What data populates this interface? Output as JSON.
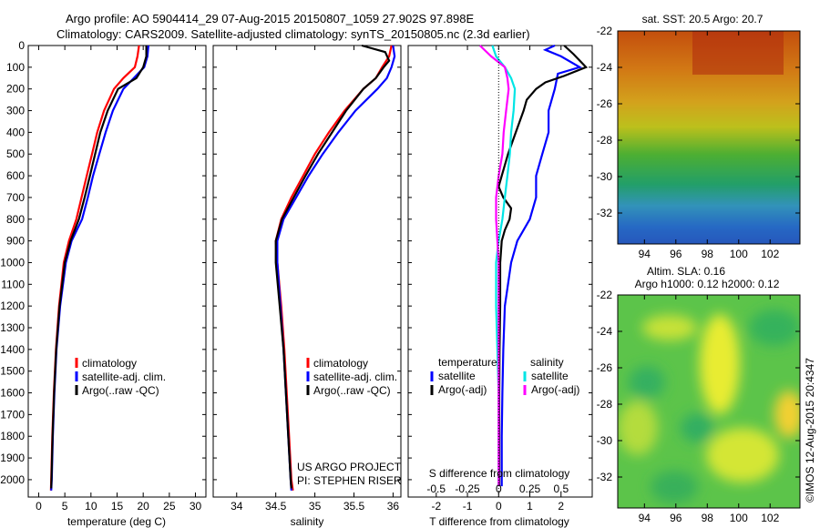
{
  "header": {
    "line1": "Argo profile: AO 5904414_29 07-Aug-2015 20150807_1059 27.902S 97.898E",
    "line2": "Climatology: CARS2009. Satellite-adjusted climatology: synTS_20150805.nc (2.3d earlier)"
  },
  "colors": {
    "climatology": "#ff0000",
    "satellite": "#0000ff",
    "argo": "#000000",
    "sal_satellite": "#00e5e5",
    "sal_argo": "#ff00ff"
  },
  "chart_data": [
    {
      "type": "line",
      "panel": "temperature",
      "xlabel": "temperature (deg C)",
      "xlim": [
        -2,
        32
      ],
      "ylim": [
        2080,
        0
      ],
      "xticks": [
        "0",
        "5",
        "10",
        "15",
        "20",
        "25",
        "30"
      ],
      "yticks": [
        "0",
        "100",
        "200",
        "300",
        "400",
        "500",
        "600",
        "700",
        "800",
        "900",
        "1000",
        "1100",
        "1200",
        "1300",
        "1400",
        "1500",
        "1600",
        "1700",
        "1800",
        "1900",
        "2000"
      ],
      "legend": [
        "climatology",
        "satellite-adj. clim.",
        "Argo(..raw -QC)"
      ],
      "series": [
        {
          "name": "climatology",
          "depth": [
            0,
            50,
            100,
            150,
            200,
            300,
            400,
            500,
            600,
            700,
            800,
            900,
            1000,
            1200,
            1400,
            1600,
            1800,
            2000,
            2050
          ],
          "values": [
            19.2,
            18.9,
            18.4,
            16.2,
            14.4,
            12.5,
            11.2,
            10.2,
            9.2,
            8.2,
            7.2,
            5.8,
            4.8,
            3.9,
            3.3,
            2.9,
            2.6,
            2.4,
            2.35
          ]
        },
        {
          "name": "satellite-adj. clim.",
          "depth": [
            0,
            50,
            100,
            150,
            200,
            300,
            400,
            500,
            600,
            700,
            800,
            900,
            1000,
            1200,
            1400,
            1600,
            1800,
            2000,
            2050
          ],
          "values": [
            21.0,
            20.8,
            20.2,
            18.2,
            16.2,
            14.2,
            12.8,
            11.6,
            10.4,
            9.4,
            8.3,
            6.3,
            5.2,
            4.1,
            3.4,
            3.0,
            2.7,
            2.5,
            2.4
          ]
        },
        {
          "name": "Argo(..raw -QC)",
          "depth": [
            0,
            50,
            100,
            150,
            200,
            300,
            400,
            500,
            600,
            700,
            800,
            900,
            1000,
            1200,
            1400,
            1600,
            1800,
            2000,
            2040
          ],
          "values": [
            20.6,
            20.6,
            20.0,
            18.7,
            15.2,
            13.2,
            11.8,
            10.8,
            9.8,
            8.8,
            7.7,
            6.1,
            5.0,
            4.0,
            3.35,
            2.95,
            2.65,
            2.45,
            2.4
          ]
        }
      ]
    },
    {
      "type": "line",
      "panel": "salinity",
      "xlabel": "salinity",
      "xlim": [
        33.7,
        36.1
      ],
      "ylim": [
        2080,
        0
      ],
      "xticks": [
        "34",
        "34.5",
        "35",
        "35.5",
        "36"
      ],
      "legend": [
        "climatology",
        "satellite-adj. clim.",
        "Argo(..raw -QC)"
      ],
      "series": [
        {
          "name": "climatology",
          "depth": [
            0,
            50,
            100,
            150,
            200,
            300,
            400,
            500,
            600,
            700,
            800,
            900,
            1000,
            1200,
            1400,
            1600,
            1800,
            2000,
            2050
          ],
          "values": [
            35.98,
            35.95,
            35.86,
            35.78,
            35.62,
            35.38,
            35.18,
            35.0,
            34.85,
            34.7,
            34.57,
            34.5,
            34.52,
            34.57,
            34.61,
            34.64,
            34.67,
            34.7,
            34.72
          ]
        },
        {
          "name": "satellite-adj. clim.",
          "depth": [
            0,
            50,
            100,
            150,
            200,
            300,
            400,
            500,
            600,
            700,
            800,
            900,
            1000,
            1200,
            1400,
            1600,
            1800,
            2000,
            2050
          ],
          "values": [
            36.0,
            36.02,
            35.98,
            35.92,
            35.8,
            35.52,
            35.3,
            35.1,
            34.92,
            34.76,
            34.6,
            34.52,
            34.52,
            34.56,
            34.6,
            34.63,
            34.66,
            34.69,
            34.7
          ]
        },
        {
          "name": "Argo(..raw -QC)",
          "depth": [
            0,
            30,
            70,
            100,
            150,
            200,
            300,
            400,
            500,
            600,
            700,
            800,
            900,
            1000,
            1200,
            1400,
            1600,
            1800,
            2000,
            2040
          ],
          "values": [
            35.6,
            35.9,
            35.95,
            35.88,
            35.78,
            35.62,
            35.4,
            35.22,
            35.04,
            34.88,
            34.73,
            34.58,
            34.5,
            34.5,
            34.55,
            34.6,
            34.63,
            34.66,
            34.69,
            34.7
          ]
        }
      ]
    },
    {
      "type": "line",
      "panel": "difference",
      "xlabel": "T difference from climatology",
      "xlabel_top": "S difference from climatology",
      "xlim": [
        -2.9,
        3.0
      ],
      "ylim": [
        2080,
        0
      ],
      "xticks": [
        "-2",
        "-1",
        "0",
        "1",
        "2"
      ],
      "xticks_top": [
        "-0.5",
        "-0.25",
        "0",
        "0.25",
        "0.5"
      ],
      "legend_headers": [
        "temperature",
        "salinity"
      ],
      "legend_temperature": [
        "satellite",
        "Argo(-adj)"
      ],
      "legend_salinity": [
        "satellite",
        "Argo(-adj)"
      ],
      "series": [
        {
          "name": "temperature satellite",
          "depth": [
            0,
            20,
            50,
            100,
            130,
            200,
            300,
            400,
            500,
            600,
            700,
            800,
            900,
            1000,
            1200,
            1400,
            1600,
            1800,
            2000,
            2030
          ],
          "values": [
            1.8,
            1.5,
            2.0,
            2.6,
            1.9,
            1.8,
            1.6,
            1.6,
            1.4,
            1.2,
            1.2,
            1.0,
            0.6,
            0.4,
            0.2,
            0.15,
            0.12,
            0.1,
            0.1,
            0.1
          ]
        },
        {
          "name": "temperature Argo(-adj)",
          "depth": [
            0,
            40,
            100,
            140,
            170,
            200,
            250,
            300,
            400,
            500,
            600,
            650,
            700,
            750,
            800,
            850,
            900,
            1000,
            1200,
            1400,
            1600,
            1800,
            2000,
            2030
          ],
          "values": [
            2.1,
            2.4,
            2.8,
            2.1,
            1.5,
            1.2,
            0.9,
            0.8,
            0.55,
            0.3,
            0.1,
            0.0,
            0.15,
            0.4,
            0.35,
            0.2,
            0.1,
            0.05,
            0.05,
            0.03,
            0.02,
            0.02,
            0.02,
            0.02
          ]
        },
        {
          "name": "salinity satellite",
          "depth": [
            0,
            50,
            100,
            150,
            200,
            300,
            400,
            500,
            600,
            700,
            800,
            900,
            1000,
            1200,
            1400,
            1600,
            1800,
            1900,
            2000,
            2030
          ],
          "values": [
            -0.05,
            -0.02,
            0.05,
            0.1,
            0.13,
            0.12,
            0.1,
            0.09,
            0.07,
            0.05,
            0.03,
            0.0,
            -0.02,
            -0.02,
            -0.01,
            0.0,
            0.0,
            0.0,
            0.0,
            0.0
          ]
        },
        {
          "name": "salinity Argo(-adj)",
          "depth": [
            0,
            50,
            100,
            150,
            200,
            300,
            400,
            500,
            600,
            700,
            800,
            900,
            1000,
            1200,
            1400,
            1600,
            1800,
            2000,
            2030
          ],
          "values": [
            -0.15,
            -0.06,
            0.05,
            0.07,
            0.08,
            0.06,
            0.04,
            0.03,
            0.0,
            -0.02,
            -0.02,
            -0.01,
            0.0,
            0.0,
            0.0,
            0.0,
            0.0,
            0.0,
            0.0
          ]
        }
      ]
    },
    {
      "type": "heatmap",
      "panel": "sst-map",
      "title": "sat. SST: 20.5  Argo: 20.7",
      "xticks": [
        "94",
        "96",
        "98",
        "100",
        "102"
      ],
      "yticks": [
        "-22",
        "-24",
        "-26",
        "-28",
        "-30",
        "-32"
      ]
    },
    {
      "type": "heatmap",
      "panel": "sla-map",
      "title_line1": "Altim. SLA: 0.16",
      "title_line2": "Argo h1000: 0.12 h2000: 0.12",
      "xticks": [
        "94",
        "96",
        "98",
        "100",
        "102"
      ],
      "yticks": [
        "-22",
        "-24",
        "-26",
        "-28",
        "-30",
        "-32"
      ]
    }
  ],
  "footer": {
    "project": "US ARGO PROJECT",
    "pi": "PI: STEPHEN RISER",
    "credit": "©IMOS 12-Aug-2015 20:4347"
  }
}
